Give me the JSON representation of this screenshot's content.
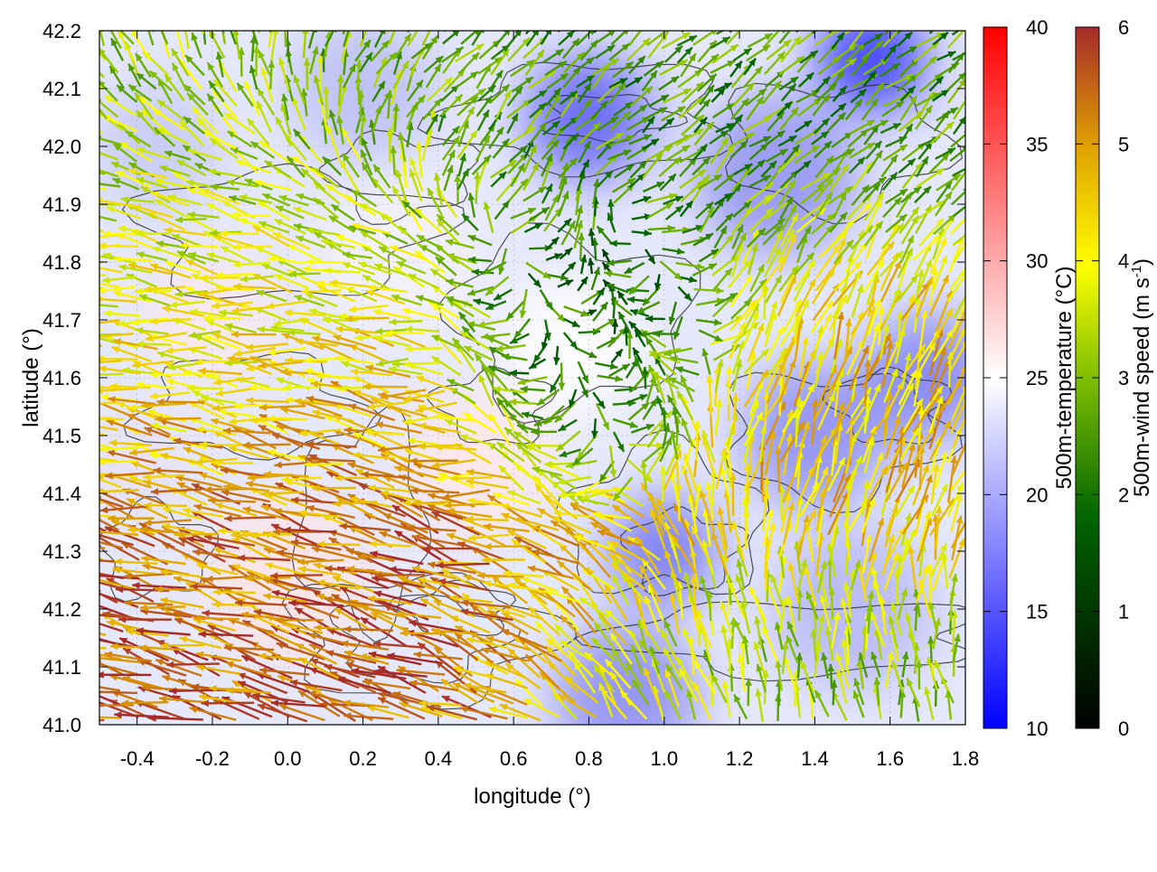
{
  "chart_data": {
    "type": "heatmap",
    "title": "",
    "xlabel": "longitude (°)",
    "ylabel": "latitude (°)",
    "xlim": [
      -0.5,
      1.8
    ],
    "ylim": [
      41.0,
      42.2
    ],
    "x_ticks": [
      "-0.4",
      "-0.2",
      "0.0",
      "0.2",
      "0.4",
      "0.6",
      "0.8",
      "1.0",
      "1.2",
      "1.4",
      "1.6",
      "1.8"
    ],
    "y_ticks": [
      "41.0",
      "41.1",
      "41.2",
      "41.3",
      "41.4",
      "41.5",
      "41.6",
      "41.7",
      "41.8",
      "41.9",
      "42.0",
      "42.1",
      "42.2"
    ],
    "x_tick_values": [
      -0.4,
      -0.2,
      0.0,
      0.2,
      0.4,
      0.6,
      0.8,
      1.0,
      1.2,
      1.4,
      1.6,
      1.8
    ],
    "y_tick_values": [
      41.0,
      41.1,
      41.2,
      41.3,
      41.4,
      41.5,
      41.6,
      41.7,
      41.8,
      41.9,
      42.0,
      42.1,
      42.2
    ],
    "grid": true,
    "layers": {
      "background": "500m-temperature field (color map, blue to white to red)",
      "contours": "terrain contour lines (dark grey)",
      "vectors": "500m wind vectors colored by speed"
    },
    "temperature_colorbar": {
      "label": "500m-temperature (°C)",
      "range": [
        10,
        40
      ],
      "ticks": [
        "10",
        "15",
        "20",
        "25",
        "30",
        "35",
        "40"
      ],
      "tick_values": [
        10,
        15,
        20,
        25,
        30,
        35,
        40
      ],
      "colors": [
        "#0000ff",
        "#ffffff",
        "#ff0000"
      ]
    },
    "wind_colorbar": {
      "label_main": "500m-wind speed (m s",
      "label_sup": "-1",
      "label_end": ")",
      "range": [
        0,
        6
      ],
      "ticks": [
        "0",
        "1",
        "2",
        "3",
        "4",
        "5",
        "6"
      ],
      "tick_values": [
        0,
        1,
        2,
        3,
        4,
        5,
        6
      ],
      "colors": [
        "#000000",
        "#006400",
        "#7fbf00",
        "#ffff00",
        "#e0a000",
        "#a52a2a"
      ]
    },
    "wind_regimes": [
      {
        "region": "southwest (lon -0.5–0.6, lat 41.0–41.5)",
        "direction": "toward west-northwest",
        "speed_ms": 5.5
      },
      {
        "region": "west (lon -0.5–0.3, lat 41.5–42.0)",
        "direction": "toward west",
        "speed_ms": 3.8
      },
      {
        "region": "center (lon 0.6–1.0, lat 41.5–41.8)",
        "direction": "variable",
        "speed_ms": 1.2
      },
      {
        "region": "east (lon 1.2–1.8, lat 41.3–41.7)",
        "direction": "toward north / northeast",
        "speed_ms": 4.5
      },
      {
        "region": "southeast (lon 1.0–1.8, lat 41.0–41.2)",
        "direction": "toward north-northwest",
        "speed_ms": 3.0
      },
      {
        "region": "north (lon 0.2–1.8, lat 41.9–42.2)",
        "direction": "toward northeast",
        "speed_ms": 2.5
      }
    ]
  }
}
